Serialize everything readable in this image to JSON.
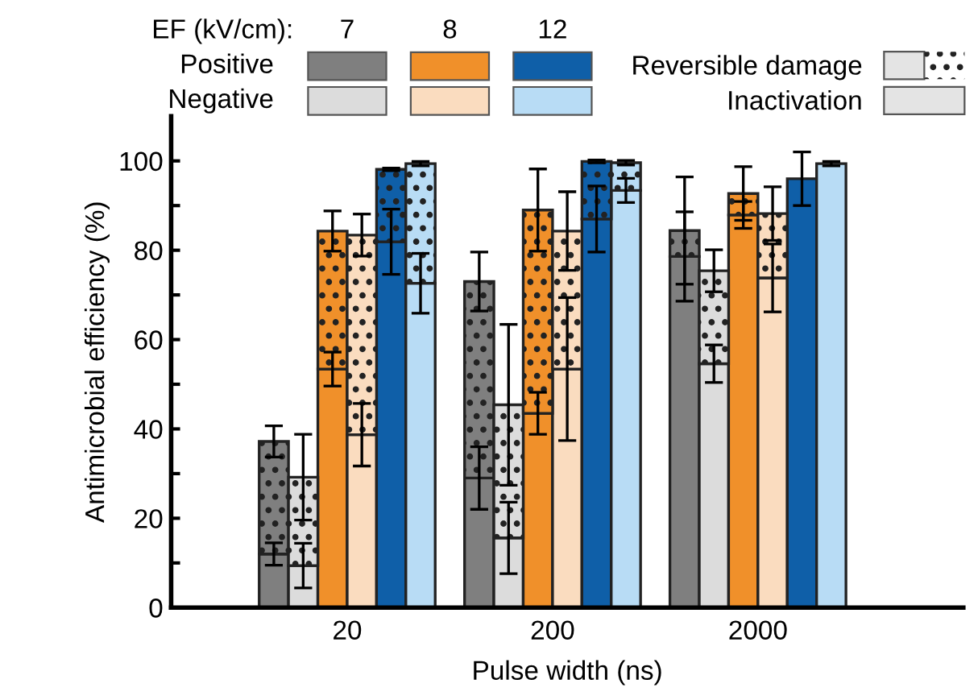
{
  "chart_data": {
    "type": "bar",
    "stacked": true,
    "xlabel": "Pulse width (ns)",
    "ylabel": "Antimicrobial efficiency (%)",
    "categories": [
      null,
      null,
      null,
      null,
      null,
      null,
      null,
      null,
      null,
      null,
      null,
      null,
      null,
      null,
      null,
      null,
      null,
      null,
      null,
      null,
      null,
      null,
      null,
      null,
      null,
      null,
      null
    ],
    "ylim": [
      0,
      110
    ],
    "yticks": [
      0,
      {
        "value": 10,
        "label": null
      },
      20,
      {
        "value": 30,
        "label": null
      },
      40,
      {
        "value": 50,
        "label": null
      },
      60,
      {
        "value": 70,
        "label": null
      },
      80,
      {
        "value": 90,
        "label": null
      },
      100
    ],
    "legend": "top right",
    "legend_title": "EF (kV/cm):",
    "annotations": [
      "20",
      "200",
      "2000",
      "7",
      "8",
      "12",
      "Positive",
      "Negative"
    ],
    "series": [
      {
        "name": "Inactivation",
        "colors": [
          null,
          null,
          null,
          "#7f7f7f",
          "#dcdcdc",
          "#f0902a",
          "#fadcbf",
          "#0f5fa8",
          "#b8dcf5",
          null,
          "#7f7f7f",
          "#dcdcdc",
          "#f0902a",
          "#fadcbf",
          "#0f5fa8",
          "#b8dcf5",
          null,
          "#7f7f7f",
          "#dcdcdc",
          "#f0902a",
          "#fadcbf",
          "#0f5fa8",
          "#b8dcf5",
          null,
          null,
          null,
          null
        ],
        "values": [
          null,
          null,
          null,
          12,
          9.4,
          53.4,
          38.7,
          81.9,
          72.6,
          null,
          29,
          15.6,
          43.5,
          53.4,
          87,
          93.4,
          null,
          78.6,
          54.6,
          87.9,
          73.8,
          96,
          99.4,
          null,
          null,
          null,
          null
        ],
        "errors": [
          null,
          null,
          null,
          2.5,
          5,
          3.8,
          7,
          7.3,
          6.7,
          null,
          7,
          8,
          4.7,
          16,
          7.4,
          2.7,
          null,
          10,
          4.2,
          3,
          7.6,
          6,
          0.5,
          null,
          null,
          null,
          null
        ]
      },
      {
        "name": "Reversible damage",
        "colors": [
          null,
          null,
          null,
          "#7f7f7f",
          "#dcdcdc",
          "#f0902a",
          "#fadcbf",
          "#0f5fa8",
          "#b8dcf5",
          null,
          "#7f7f7f",
          "#dcdcdc",
          "#f0902a",
          "#fadcbf",
          "#0f5fa8",
          "#b8dcf5",
          null,
          "#7f7f7f",
          "#dcdcdc",
          "#f0902a",
          "#fadcbf",
          null,
          null,
          null,
          null,
          null,
          null
        ],
        "values": [
          null,
          null,
          null,
          25.2,
          19.8,
          30.9,
          44.7,
          16.2,
          26.8,
          null,
          44,
          29.8,
          45.5,
          30.9,
          12.9,
          6.2,
          null,
          5.8,
          20.8,
          4.8,
          14.4,
          null,
          null,
          null,
          null,
          null,
          null
        ],
        "errors": [
          null,
          null,
          null,
          3.5,
          9.6,
          4.5,
          4.7,
          0.3,
          0.5,
          null,
          6.6,
          18,
          9.2,
          8.8,
          0.3,
          0.5,
          null,
          12,
          4.7,
          6,
          6,
          null,
          null,
          null,
          null,
          null,
          null
        ]
      }
    ]
  }
}
